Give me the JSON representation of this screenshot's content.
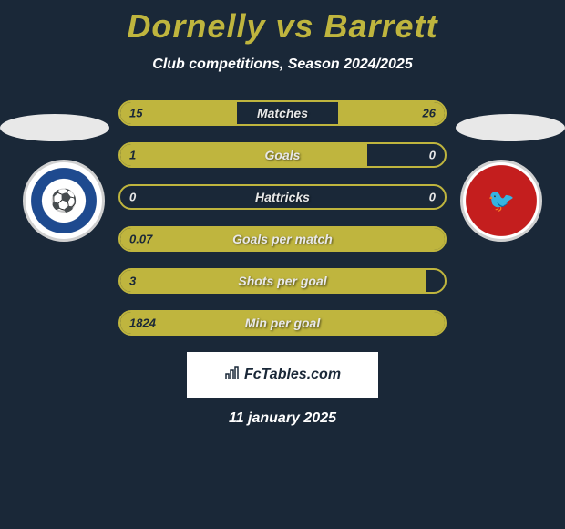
{
  "title": "Dornelly vs Barrett",
  "subtitle": "Club competitions, Season 2024/2025",
  "date": "11 january 2025",
  "logo_text": "FcTables.com",
  "colors": {
    "background": "#1a2838",
    "accent": "#bfb53e",
    "text_light": "#ffffff",
    "text_dark": "#1a2838"
  },
  "crests": {
    "left_title": "Peterborough United",
    "right_title": "Walsall FC"
  },
  "stats": [
    {
      "label": "Matches",
      "left_val": "15",
      "right_val": "26",
      "left_pct": 36,
      "right_pct": 33,
      "right_outside": false
    },
    {
      "label": "Goals",
      "left_val": "1",
      "right_val": "0",
      "left_pct": 76,
      "right_pct": 0,
      "right_outside": true
    },
    {
      "label": "Hattricks",
      "left_val": "0",
      "right_val": "0",
      "left_pct": 0,
      "right_pct": 0,
      "right_outside": true
    },
    {
      "label": "Goals per match",
      "left_val": "0.07",
      "right_val": "",
      "left_pct": 100,
      "right_pct": 0,
      "right_outside": true
    },
    {
      "label": "Shots per goal",
      "left_val": "3",
      "right_val": "",
      "left_pct": 94,
      "right_pct": 0,
      "right_outside": true
    },
    {
      "label": "Min per goal",
      "left_val": "1824",
      "right_val": "",
      "left_pct": 100,
      "right_pct": 0,
      "right_outside": true
    }
  ]
}
